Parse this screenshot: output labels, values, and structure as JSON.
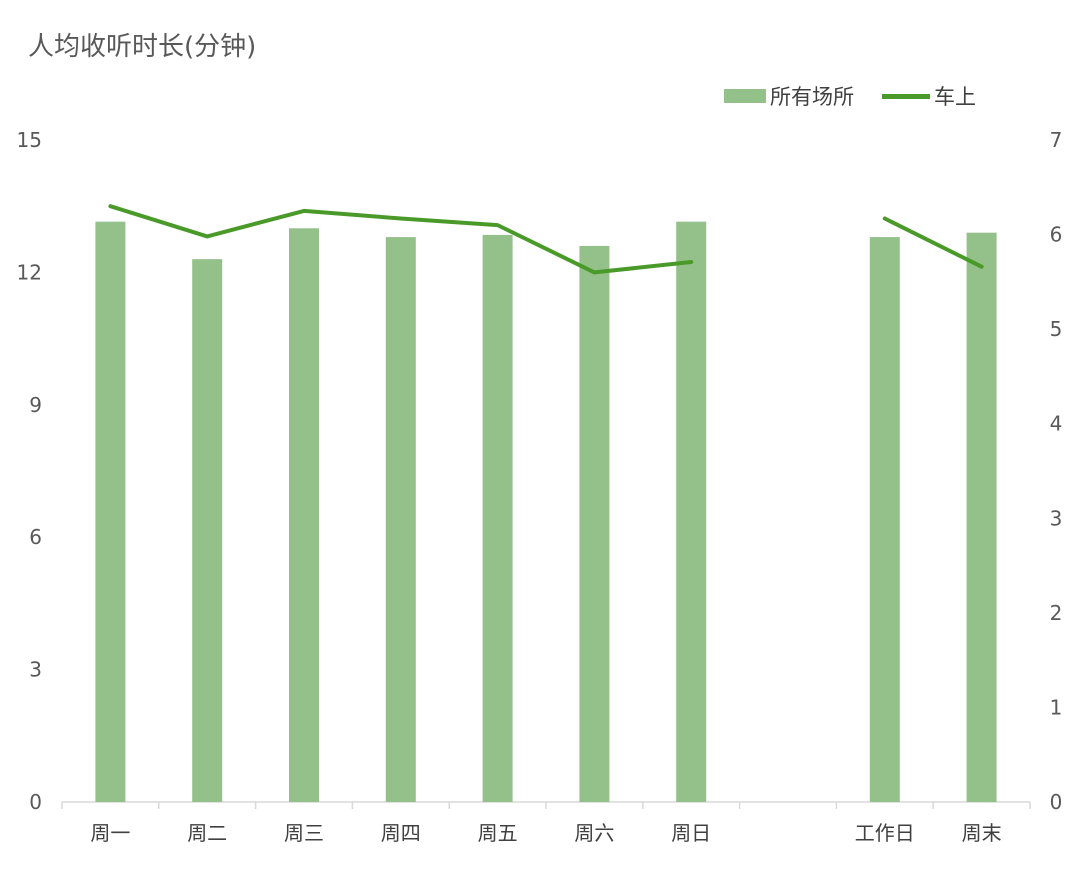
{
  "chart_data": {
    "type": "bar",
    "title": "人均收听时长(分钟)",
    "categories": [
      "周一",
      "周二",
      "周三",
      "周四",
      "周五",
      "周六",
      "周日",
      "",
      "工作日",
      "周末"
    ],
    "series": [
      {
        "name": "所有场所",
        "type": "bar",
        "axis": "left",
        "color": "#93c189",
        "values": [
          13.15,
          12.3,
          13.0,
          12.8,
          12.85,
          12.6,
          13.15,
          null,
          12.8,
          12.9
        ]
      },
      {
        "name": "车上",
        "type": "line",
        "axis": "right",
        "color": "#4a9a2a",
        "values": [
          6.3,
          5.98,
          6.25,
          6.17,
          6.1,
          5.6,
          5.71,
          null,
          6.17,
          5.66
        ]
      }
    ],
    "y_left": {
      "min": 0,
      "max": 15,
      "ticks": [
        "0",
        "3",
        "6",
        "9",
        "12",
        "15"
      ]
    },
    "y_right": {
      "min": 0,
      "max": 7,
      "ticks": [
        "0",
        "1",
        "2",
        "3",
        "4",
        "5",
        "6",
        "7"
      ]
    },
    "grid": false,
    "legend_position": "top-right"
  }
}
